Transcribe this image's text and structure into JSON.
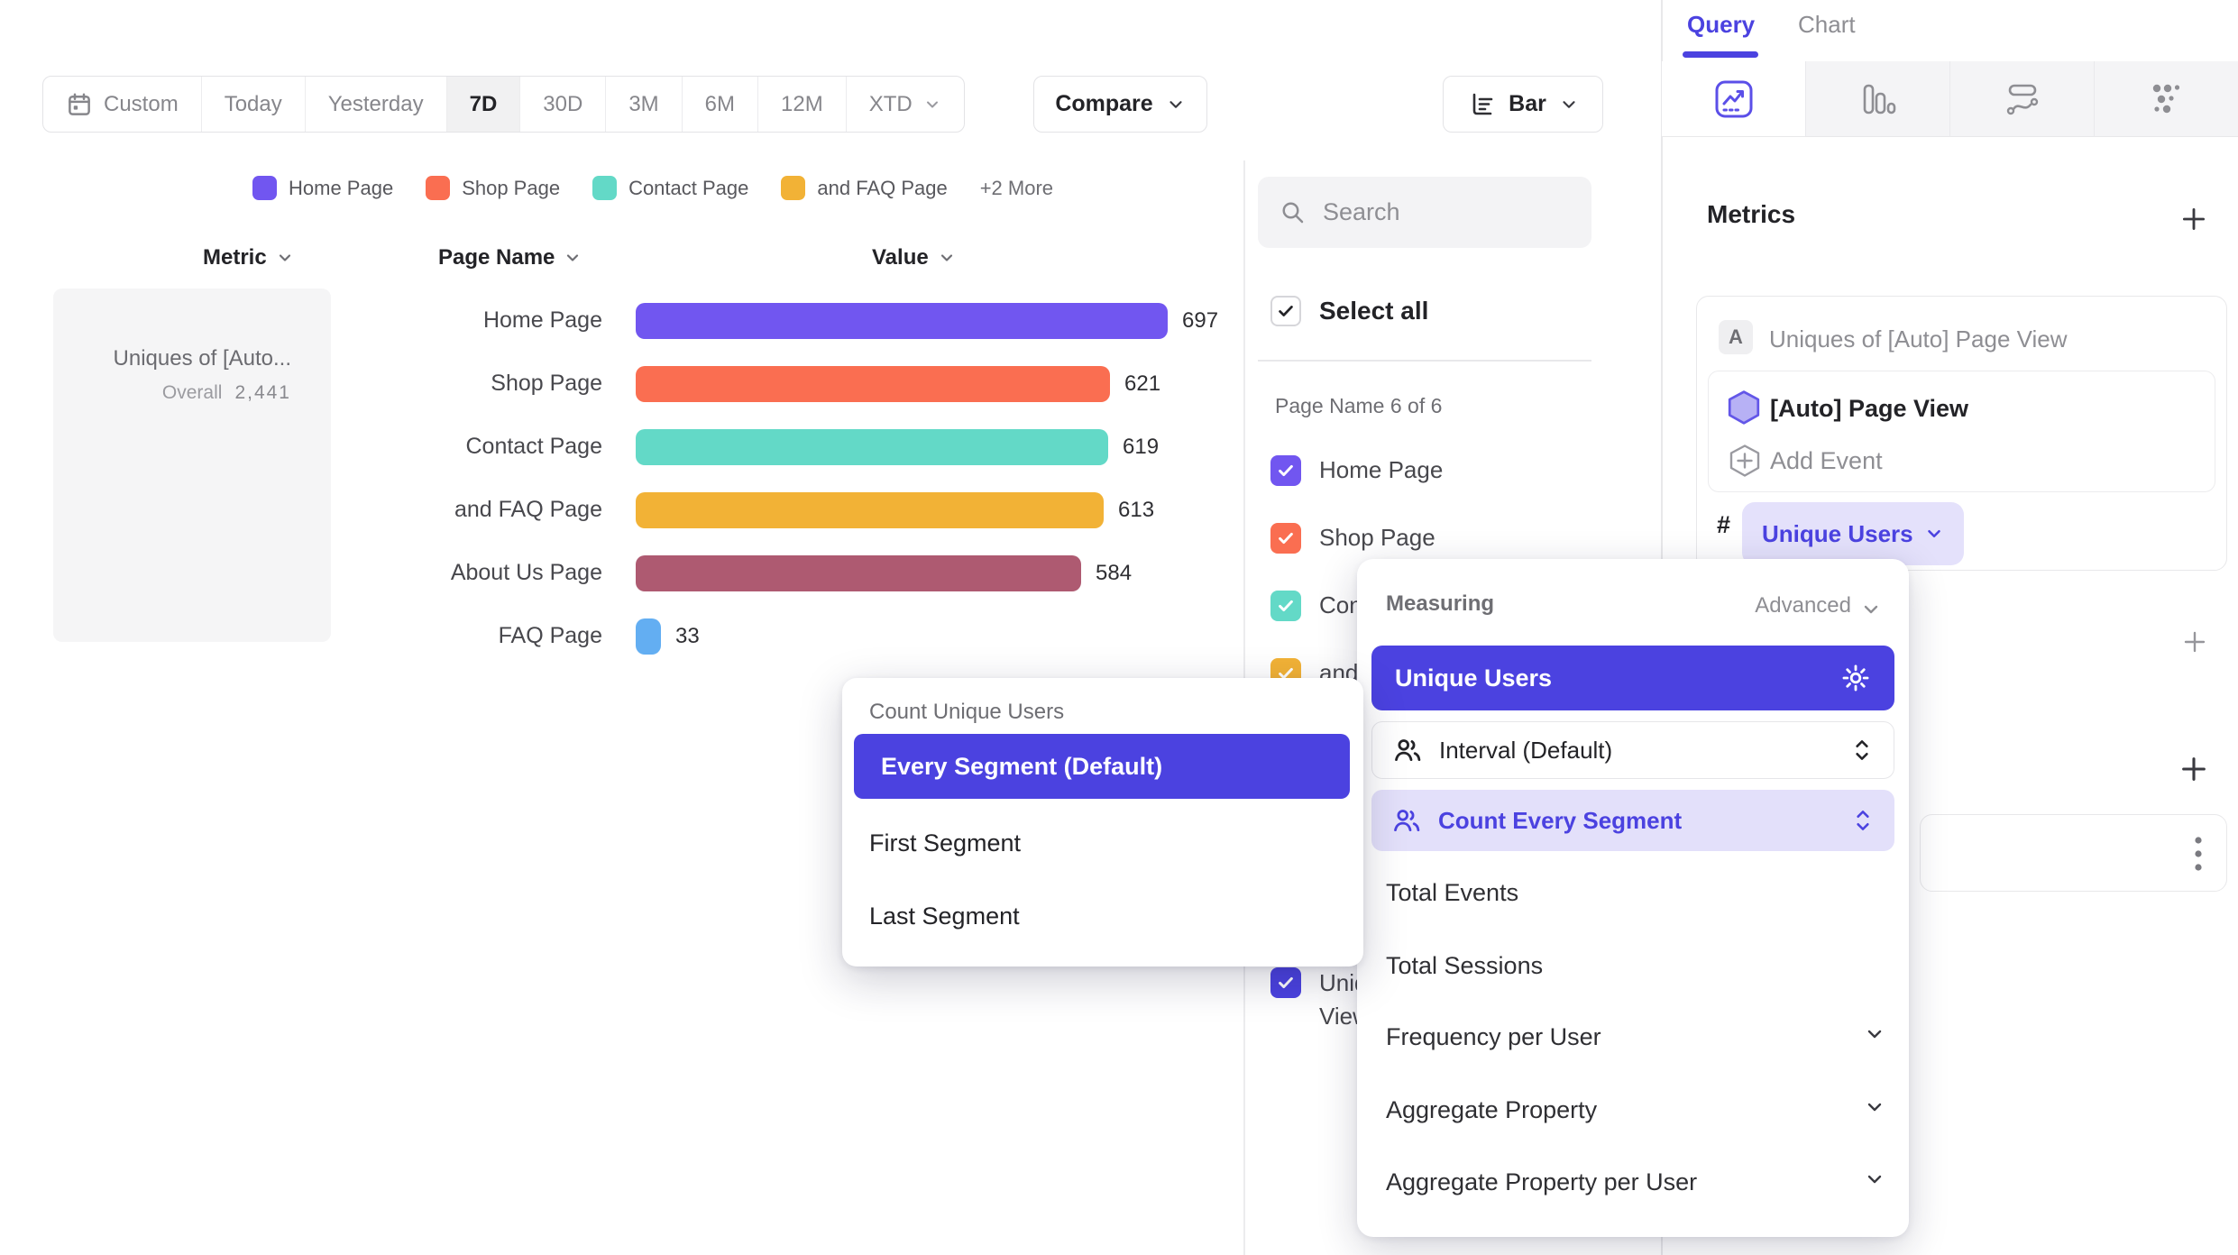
{
  "toolbar": {
    "date_ranges": [
      "Custom",
      "Today",
      "Yesterday",
      "7D",
      "30D",
      "3M",
      "6M",
      "12M",
      "XTD"
    ],
    "active_range": "7D",
    "compare_label": "Compare",
    "chart_type_label": "Bar"
  },
  "legend": {
    "items": [
      {
        "label": "Home Page",
        "color": "#7156F0"
      },
      {
        "label": "Shop Page",
        "color": "#FA6E51"
      },
      {
        "label": "Contact Page",
        "color": "#63D9C7"
      },
      {
        "label": "and FAQ Page",
        "color": "#F2B236"
      }
    ],
    "more_label": "+2 More"
  },
  "table_headers": {
    "metric": "Metric",
    "page_name": "Page Name",
    "value": "Value"
  },
  "metric_card": {
    "title_truncated": "Uniques of [Auto...",
    "overall_label": "Overall",
    "overall_value": "2,441"
  },
  "chart_data": {
    "type": "bar",
    "title": "Uniques of [Auto] Page View",
    "categories": [
      "Home Page",
      "Shop Page",
      "Contact Page",
      "and FAQ Page",
      "About Us Page",
      "FAQ Page"
    ],
    "values": [
      697,
      621,
      619,
      613,
      584,
      33
    ],
    "colors": [
      "#7156F0",
      "#FA6E51",
      "#63D9C7",
      "#F2B236",
      "#AE5A71",
      "#63AEF2"
    ],
    "overall": 2441,
    "orientation": "horizontal",
    "value_labels": true
  },
  "filter_panel": {
    "search_placeholder": "Search",
    "select_all_label": "Select all",
    "section_label": "Page Name 6 of 6",
    "items": [
      {
        "label": "Home Page",
        "color": "#7156F0",
        "checked": true
      },
      {
        "label": "Shop Page",
        "color": "#FA6E51",
        "checked": true
      },
      {
        "label": "Contact Page",
        "color": "#63D9C7",
        "checked": true
      },
      {
        "label": "and FAQ Page",
        "color": "#F2B236",
        "checked": true
      },
      {
        "label": "About Us Page",
        "color": "#AE5A71",
        "checked": true
      },
      {
        "label": "FAQ Page",
        "color": "#63AEF2",
        "checked": true
      }
    ],
    "metric_item": {
      "label": "Uniques of [Auto] Page View",
      "color": "#4B42E0",
      "checked": true
    }
  },
  "query_panel": {
    "tabs": [
      "Query",
      "Chart"
    ],
    "active_tab": "Query",
    "metrics_title": "Metrics",
    "metric_badge": "A",
    "metric_title": "Uniques of [Auto] Page View",
    "event_name": "[Auto] Page View",
    "add_event_label": "Add Event",
    "hash_symbol": "#",
    "measure_chip_label": "Unique Users"
  },
  "measuring_menu": {
    "title": "Measuring",
    "advanced_label": "Advanced",
    "selected_option": "Unique Users",
    "interval_label": "Interval (Default)",
    "segment_label": "Count Every Segment",
    "options": [
      "Total Events",
      "Total Sessions"
    ],
    "expandable_options": [
      "Frequency per User",
      "Aggregate Property",
      "Aggregate Property per User"
    ]
  },
  "segment_popup": {
    "title": "Count Unique Users",
    "selected_option": "Every Segment (Default)",
    "options": [
      "First Segment",
      "Last Segment"
    ]
  },
  "colors": {
    "primary": "#4B42E0",
    "primary_chip_bg": "#E4E1FB",
    "lavender_row_bg": "#E3E0FA",
    "text_dark": "#232327",
    "text_gray": "#8E8E93",
    "border": "#E8E8EA"
  }
}
